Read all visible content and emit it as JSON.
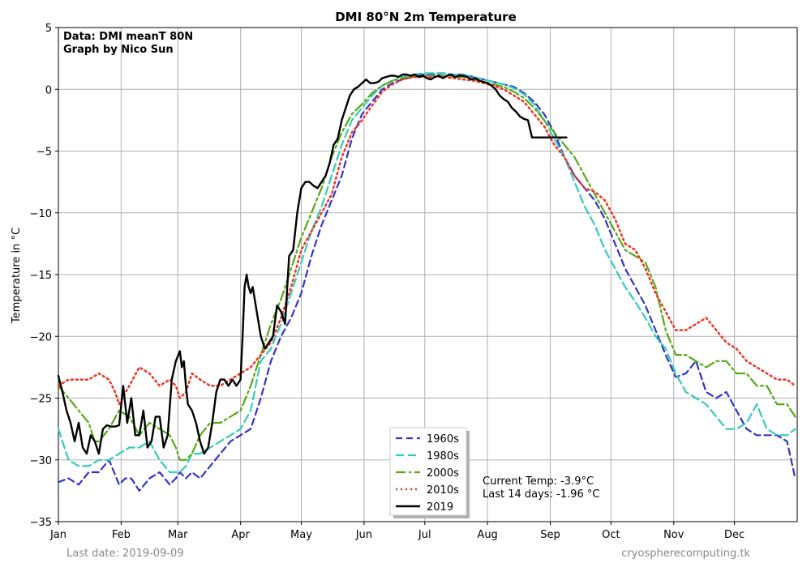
{
  "chart_data": {
    "type": "line",
    "title": "DMI 80°N 2m Temperature",
    "ylabel": "Temperature in °C",
    "xlabel": "",
    "xlim": [
      0,
      365
    ],
    "ylim": [
      -35,
      5
    ],
    "yticks": [
      5,
      0,
      -5,
      -10,
      -15,
      -20,
      -25,
      -30,
      -35
    ],
    "ytick_labels": [
      "5",
      "0",
      "−5",
      "−10",
      "−15",
      "−20",
      "−25",
      "−30",
      "−35"
    ],
    "xticks": [
      {
        "day": 0,
        "label": "Jan"
      },
      {
        "day": 31,
        "label": "Feb"
      },
      {
        "day": 59,
        "label": "Mar"
      },
      {
        "day": 90,
        "label": "Apr"
      },
      {
        "day": 120,
        "label": "May"
      },
      {
        "day": 151,
        "label": "Jun"
      },
      {
        "day": 181,
        "label": "Jul"
      },
      {
        "day": 212,
        "label": "Aug"
      },
      {
        "day": 243,
        "label": "Sep"
      },
      {
        "day": 273,
        "label": "Oct"
      },
      {
        "day": 304,
        "label": "Nov"
      },
      {
        "day": 334,
        "label": "Dec"
      }
    ],
    "grid": true,
    "legend_position": "bottom-center",
    "annotations": {
      "data_source": "Data: DMI meanT 80N",
      "credit": "Graph by Nico Sun",
      "current_temp": "Current Temp: -3.9°C",
      "last_14_days": "Last 14 days: -1.96 °C",
      "last_date": "Last date: 2019-09-09",
      "website": "cryospherecomputing.tk"
    },
    "series": [
      {
        "name": "1960s",
        "color": "#3333cc",
        "dash": "8,5",
        "width": 2.2,
        "x": [
          0,
          5,
          10,
          15,
          20,
          25,
          30,
          33,
          36,
          40,
          45,
          50,
          55,
          58,
          60,
          63,
          66,
          70,
          75,
          80,
          85,
          90,
          95,
          100,
          105,
          110,
          115,
          120,
          125,
          130,
          135,
          140,
          145,
          150,
          155,
          160,
          165,
          170,
          175,
          180,
          185,
          190,
          195,
          200,
          205,
          210,
          215,
          220,
          225,
          230,
          235,
          240,
          245,
          250,
          255,
          260,
          265,
          270,
          275,
          280,
          285,
          290,
          295,
          300,
          305,
          310,
          315,
          320,
          325,
          330,
          335,
          340,
          345,
          350,
          355,
          360,
          364
        ],
        "y": [
          -31.8,
          -31.5,
          -32,
          -31,
          -31,
          -30,
          -32,
          -31.5,
          -31.5,
          -32.5,
          -31.5,
          -31,
          -32,
          -31.5,
          -31,
          -31.5,
          -31,
          -31.5,
          -30.5,
          -29.5,
          -28.5,
          -28,
          -27.5,
          -25,
          -22,
          -20,
          -18.5,
          -16.5,
          -13.5,
          -11,
          -9,
          -7,
          -4,
          -2,
          -1,
          0,
          0.5,
          0.8,
          1,
          1.2,
          1.2,
          1.3,
          1.2,
          1.2,
          1.0,
          0.8,
          0.6,
          0.4,
          0.2,
          -0.3,
          -1.0,
          -2.0,
          -3.5,
          -5.5,
          -7,
          -8,
          -9,
          -10.5,
          -12.5,
          -14.5,
          -16,
          -17.5,
          -19.5,
          -21.5,
          -23.3,
          -23,
          -22,
          -24.5,
          -25,
          -24.5,
          -26,
          -27.5,
          -28,
          -28,
          -28,
          -28.5,
          -31.5
        ]
      },
      {
        "name": "1980s",
        "color": "#33ccbb",
        "dash": "10,5",
        "width": 2.2,
        "x": [
          0,
          5,
          10,
          15,
          20,
          25,
          30,
          35,
          40,
          45,
          50,
          55,
          58,
          60,
          63,
          66,
          70,
          75,
          80,
          85,
          90,
          95,
          100,
          105,
          110,
          115,
          120,
          125,
          130,
          135,
          140,
          145,
          150,
          155,
          160,
          165,
          170,
          175,
          180,
          185,
          190,
          195,
          200,
          205,
          210,
          215,
          220,
          225,
          230,
          235,
          240,
          245,
          250,
          255,
          260,
          265,
          270,
          275,
          280,
          285,
          290,
          295,
          300,
          305,
          310,
          315,
          320,
          325,
          330,
          335,
          340,
          345,
          350,
          355,
          360,
          364
        ],
        "y": [
          -27.5,
          -30,
          -30.5,
          -30.5,
          -30,
          -30,
          -29.5,
          -29,
          -29,
          -28.5,
          -30,
          -31,
          -31,
          -31,
          -30.5,
          -29.5,
          -29.5,
          -29,
          -28.5,
          -28,
          -27.5,
          -26,
          -22,
          -21,
          -19,
          -16.5,
          -14,
          -11.5,
          -9.5,
          -7,
          -4.5,
          -2.5,
          -1.5,
          -0.5,
          0.3,
          0.7,
          1.0,
          1.2,
          1.3,
          1.3,
          1.3,
          1.2,
          1.2,
          1.0,
          0.8,
          0.6,
          0.4,
          0.1,
          -0.4,
          -1.2,
          -2.5,
          -4,
          -5.5,
          -7.5,
          -9.5,
          -11,
          -13,
          -14.5,
          -16,
          -17.2,
          -18.5,
          -20,
          -21,
          -23,
          -24.5,
          -25,
          -25.5,
          -26.5,
          -27.5,
          -27.5,
          -27,
          -25.5,
          -27.5,
          -28,
          -28,
          -27.5
        ]
      },
      {
        "name": "2000s",
        "color": "#55aa11",
        "dash": "12,4,3,4",
        "width": 2.2,
        "x": [
          0,
          5,
          10,
          15,
          18,
          20,
          25,
          30,
          35,
          40,
          45,
          50,
          55,
          58,
          60,
          63,
          66,
          70,
          75,
          80,
          85,
          90,
          95,
          100,
          105,
          110,
          115,
          120,
          125,
          130,
          135,
          140,
          145,
          150,
          155,
          160,
          165,
          170,
          175,
          180,
          185,
          190,
          195,
          200,
          205,
          210,
          215,
          220,
          225,
          230,
          235,
          240,
          245,
          250,
          255,
          260,
          265,
          270,
          275,
          280,
          285,
          290,
          295,
          300,
          305,
          310,
          315,
          320,
          325,
          330,
          335,
          340,
          345,
          350,
          355,
          360,
          364
        ],
        "y": [
          -24,
          -25,
          -26,
          -27,
          -28.5,
          -28.5,
          -27.5,
          -26,
          -26.5,
          -28,
          -27,
          -27.5,
          -28,
          -29,
          -30,
          -30,
          -29.5,
          -28,
          -27,
          -27,
          -26.5,
          -26,
          -24,
          -21.5,
          -19,
          -17,
          -14.5,
          -12,
          -10,
          -8,
          -5.5,
          -3.5,
          -2,
          -1.2,
          -0.3,
          0.3,
          0.7,
          0.9,
          1.0,
          1.1,
          1.1,
          1.1,
          1.0,
          1.0,
          0.8,
          0.6,
          0.4,
          0.2,
          -0.2,
          -0.7,
          -1.5,
          -2.5,
          -3.5,
          -4.5,
          -5.5,
          -7,
          -8.5,
          -10,
          -11.5,
          -13,
          -13.5,
          -14,
          -16,
          -19.5,
          -21.5,
          -21.5,
          -22,
          -22.5,
          -22,
          -22,
          -23,
          -23,
          -24,
          -24,
          -25.5,
          -25.5,
          -26.5
        ]
      },
      {
        "name": "2010s",
        "color": "#ee3322",
        "dash": "2,4",
        "width": 2.5,
        "x": [
          0,
          5,
          10,
          15,
          20,
          25,
          28,
          30,
          35,
          40,
          45,
          50,
          55,
          58,
          60,
          63,
          66,
          70,
          75,
          80,
          85,
          90,
          95,
          100,
          105,
          110,
          115,
          120,
          125,
          130,
          135,
          140,
          145,
          150,
          155,
          160,
          165,
          170,
          175,
          180,
          185,
          190,
          195,
          200,
          205,
          210,
          215,
          220,
          225,
          230,
          235,
          240,
          245,
          250,
          255,
          260,
          265,
          270,
          275,
          280,
          285,
          290,
          295,
          300,
          305,
          310,
          315,
          320,
          325,
          330,
          335,
          340,
          345,
          350,
          355,
          360,
          364
        ],
        "y": [
          -24,
          -23.5,
          -23.5,
          -23.5,
          -23,
          -23.5,
          -24.5,
          -25.5,
          -24,
          -22.5,
          -23,
          -24,
          -23.5,
          -24,
          -25,
          -24.5,
          -23,
          -23.5,
          -24,
          -24,
          -23.5,
          -23,
          -22.5,
          -21.5,
          -20.5,
          -18.5,
          -16,
          -13,
          -11.5,
          -10,
          -8.5,
          -5.5,
          -3.5,
          -2.5,
          -1.3,
          -0.2,
          0.4,
          0.8,
          1.0,
          1.0,
          1.0,
          1.0,
          0.9,
          0.8,
          0.7,
          0.5,
          0.3,
          0,
          -0.5,
          -1.0,
          -2.0,
          -3.0,
          -4.5,
          -5.5,
          -7,
          -8,
          -8.3,
          -9,
          -10.5,
          -12.5,
          -13,
          -14.5,
          -16.5,
          -18,
          -19.5,
          -19.5,
          -19,
          -18.5,
          -19.5,
          -20.5,
          -21,
          -22,
          -22.5,
          -23,
          -23.5,
          -23.5,
          -24
        ]
      },
      {
        "name": "2019",
        "color": "#000000",
        "dash": "",
        "width": 2.4,
        "x": [
          0,
          2,
          4,
          6,
          8,
          10,
          12,
          14,
          16,
          18,
          20,
          22,
          24,
          26,
          28,
          30,
          32,
          34,
          36,
          38,
          40,
          42,
          44,
          46,
          48,
          50,
          52,
          54,
          56,
          58,
          60,
          61,
          62,
          63,
          64,
          66,
          68,
          70,
          72,
          74,
          76,
          78,
          80,
          82,
          84,
          86,
          88,
          90,
          91,
          92,
          93,
          94,
          95,
          96,
          98,
          100,
          102,
          104,
          106,
          108,
          110,
          112,
          114,
          116,
          118,
          120,
          122,
          124,
          126,
          128,
          130,
          132,
          134,
          136,
          138,
          140,
          142,
          144,
          146,
          148,
          150,
          152,
          154,
          156,
          158,
          160,
          162,
          164,
          166,
          168,
          170,
          172,
          174,
          176,
          178,
          180,
          182,
          184,
          186,
          188,
          190,
          192,
          194,
          196,
          198,
          200,
          202,
          204,
          206,
          208,
          210,
          212,
          214,
          216,
          218,
          220,
          222,
          224,
          226,
          228,
          230,
          232,
          234,
          236,
          238,
          240,
          242,
          244,
          246,
          248,
          250,
          251
        ],
        "y": [
          -23.2,
          -24.5,
          -26,
          -27,
          -28.5,
          -27,
          -29,
          -29.5,
          -28,
          -28.5,
          -29.5,
          -27.5,
          -27.2,
          -27.3,
          -27.3,
          -27.2,
          -24,
          -27,
          -25,
          -28,
          -28,
          -26,
          -29,
          -28.5,
          -26.5,
          -26.5,
          -29,
          -28,
          -23.5,
          -22,
          -21.2,
          -22.5,
          -22,
          -24,
          -25.5,
          -26,
          -27,
          -28.5,
          -29.5,
          -29,
          -27,
          -24.5,
          -23.5,
          -23.5,
          -24,
          -23.5,
          -24,
          -23.5,
          -20,
          -16,
          -15,
          -16,
          -16.5,
          -16,
          -18,
          -20,
          -21,
          -20.5,
          -20,
          -17.5,
          -18,
          -19,
          -13.5,
          -13,
          -10,
          -8,
          -7.5,
          -7.5,
          -7.8,
          -8,
          -7.5,
          -7,
          -6,
          -4.5,
          -4,
          -2.5,
          -1.5,
          -0.5,
          0,
          0.2,
          0.5,
          0.8,
          0.5,
          0.5,
          0.6,
          0.9,
          1.0,
          1.1,
          1.1,
          1.0,
          1.2,
          1.2,
          1.1,
          1.2,
          1.0,
          1.1,
          0.9,
          0.8,
          1.0,
          1.1,
          0.9,
          1.1,
          1.2,
          1.0,
          1.1,
          1.1,
          1.0,
          0.8,
          0.9,
          0.7,
          0.6,
          0.5,
          0.3,
          0,
          -0.5,
          -0.8,
          -1.0,
          -1.5,
          -1.8,
          -2.2,
          -2.4,
          -2.5,
          -3.9,
          -3.9,
          -3.9,
          -3.9,
          -3.9,
          -3.9,
          -3.9,
          -3.9,
          -3.9,
          -3.9
        ]
      }
    ]
  }
}
